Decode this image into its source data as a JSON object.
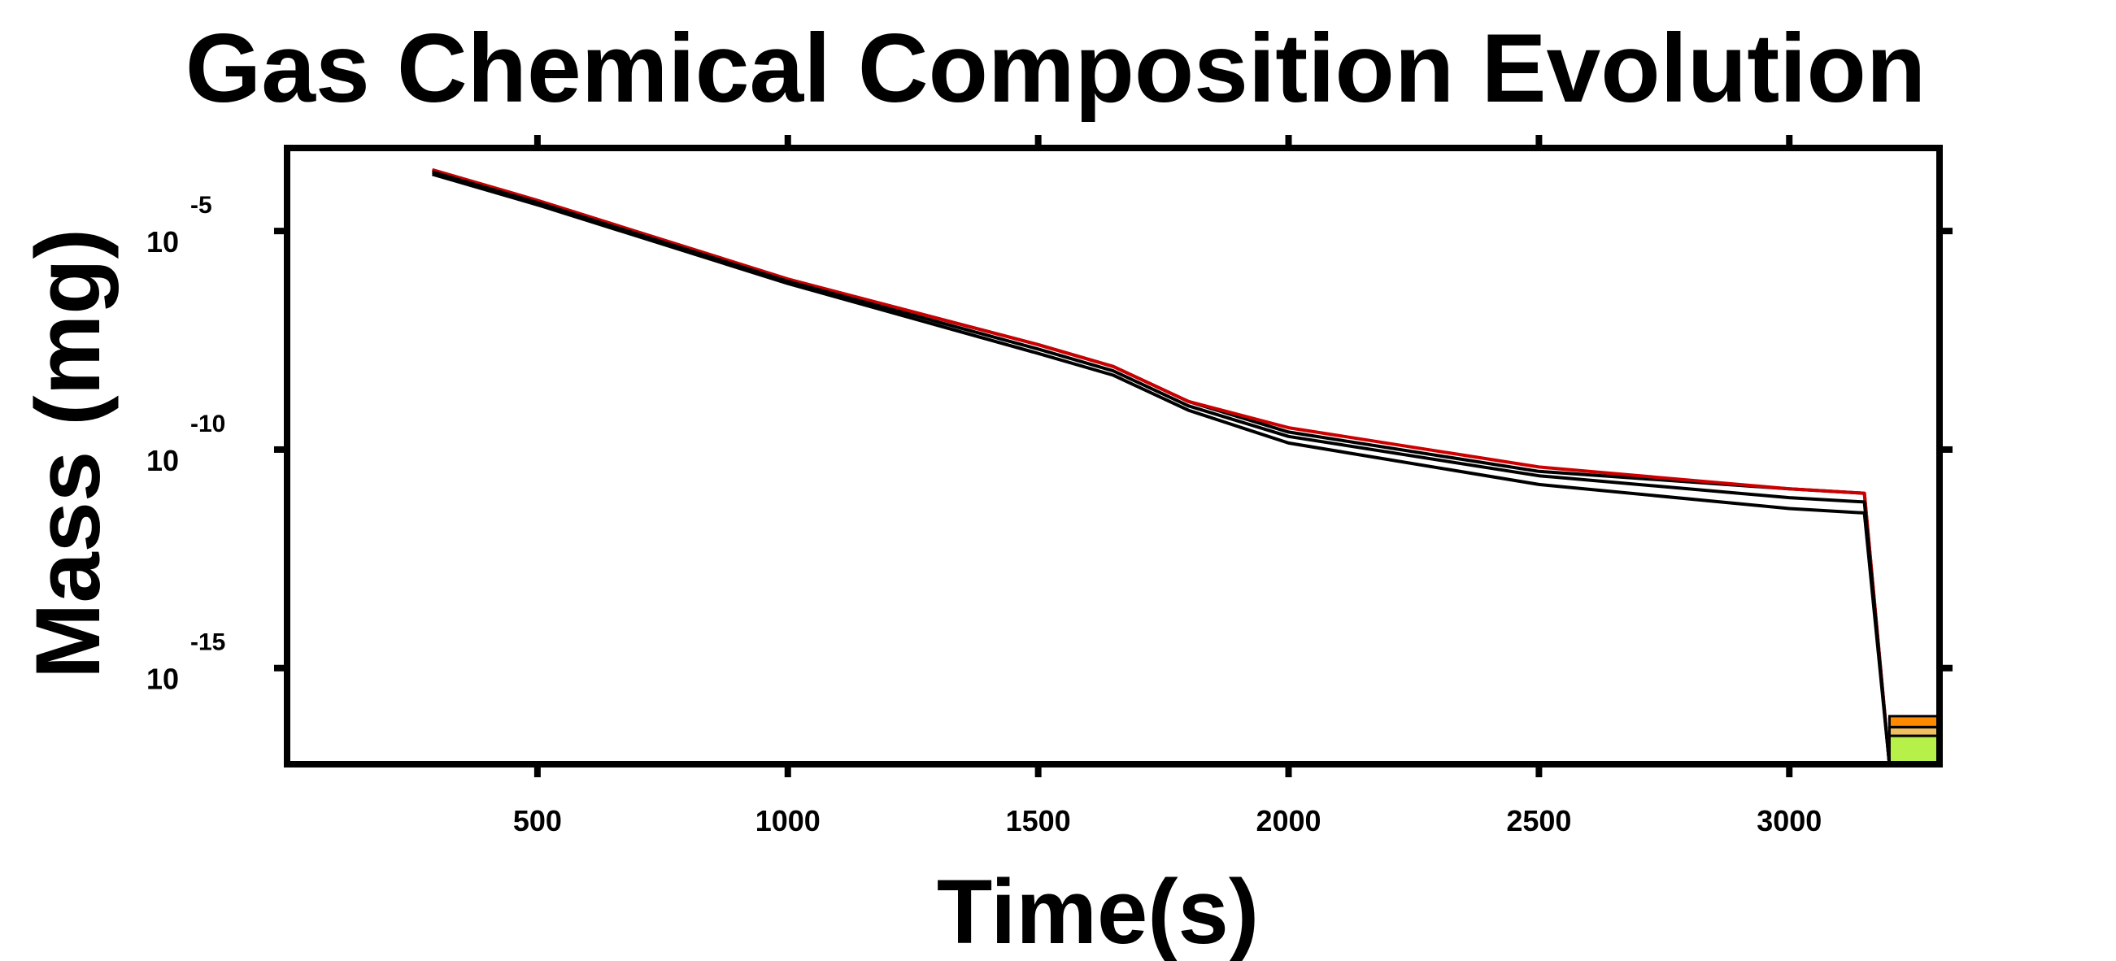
{
  "chart_data": {
    "type": "line",
    "title": "Gas Chemical Composition Evolution",
    "xlabel": "Time(s)",
    "ylabel": "Mass (mg)",
    "xlim": [
      0,
      3300
    ],
    "ylim": [
      -17.2,
      -3.1
    ],
    "yscale": "log",
    "x_ticks": [
      500,
      1000,
      1500,
      2000,
      2500,
      3000
    ],
    "y_ticks": [
      {
        "base": "10",
        "exp": "-5",
        "value": -5
      },
      {
        "base": "10",
        "exp": "-10",
        "value": -10
      },
      {
        "base": "10",
        "exp": "-15",
        "value": -15
      }
    ],
    "grid": false,
    "legend": "none",
    "series": [
      {
        "color": "#000000",
        "x": [
          290,
          500,
          1000,
          1500,
          1650,
          1800,
          2000,
          2500,
          3000,
          3150,
          3200
        ],
        "values": [
          -3.6,
          -4.3,
          -6.1,
          -7.6,
          -8.1,
          -8.9,
          -9.6,
          -10.5,
          -10.9,
          -11.0,
          -17.2
        ]
      },
      {
        "color": "#cc0000",
        "x": [
          290,
          500,
          1000,
          1500,
          1650,
          1800,
          2000,
          2500,
          3000,
          3150,
          3200
        ],
        "values": [
          -3.6,
          -4.3,
          -6.1,
          -7.6,
          -8.1,
          -8.9,
          -9.5,
          -10.4,
          -10.9,
          -11.0,
          -17.2
        ]
      },
      {
        "color": "#000000",
        "x": [
          290,
          500,
          1000,
          1500,
          1650,
          1800,
          2000,
          2500,
          3000,
          3150,
          3200
        ],
        "values": [
          -3.65,
          -4.35,
          -6.15,
          -7.7,
          -8.2,
          -9.0,
          -9.7,
          -10.6,
          -11.1,
          -11.2,
          -17.2
        ]
      },
      {
        "color": "#000000",
        "x": [
          290,
          500,
          1000,
          1500,
          1650,
          1800,
          2000,
          2500,
          3000,
          3150,
          3200
        ],
        "values": [
          -3.7,
          -4.4,
          -6.2,
          -7.8,
          -8.3,
          -9.1,
          -9.85,
          -10.8,
          -11.35,
          -11.45,
          -17.2
        ]
      }
    ],
    "end_bands": [
      {
        "color": "#b8f04a",
        "from": -17.2,
        "to": -16.55
      },
      {
        "color": "#f0c060",
        "from": -16.55,
        "to": -16.35
      },
      {
        "color": "#ff8a00",
        "from": -16.35,
        "to": -16.1
      }
    ],
    "end_band_xrange": [
      3200,
      3300
    ]
  }
}
